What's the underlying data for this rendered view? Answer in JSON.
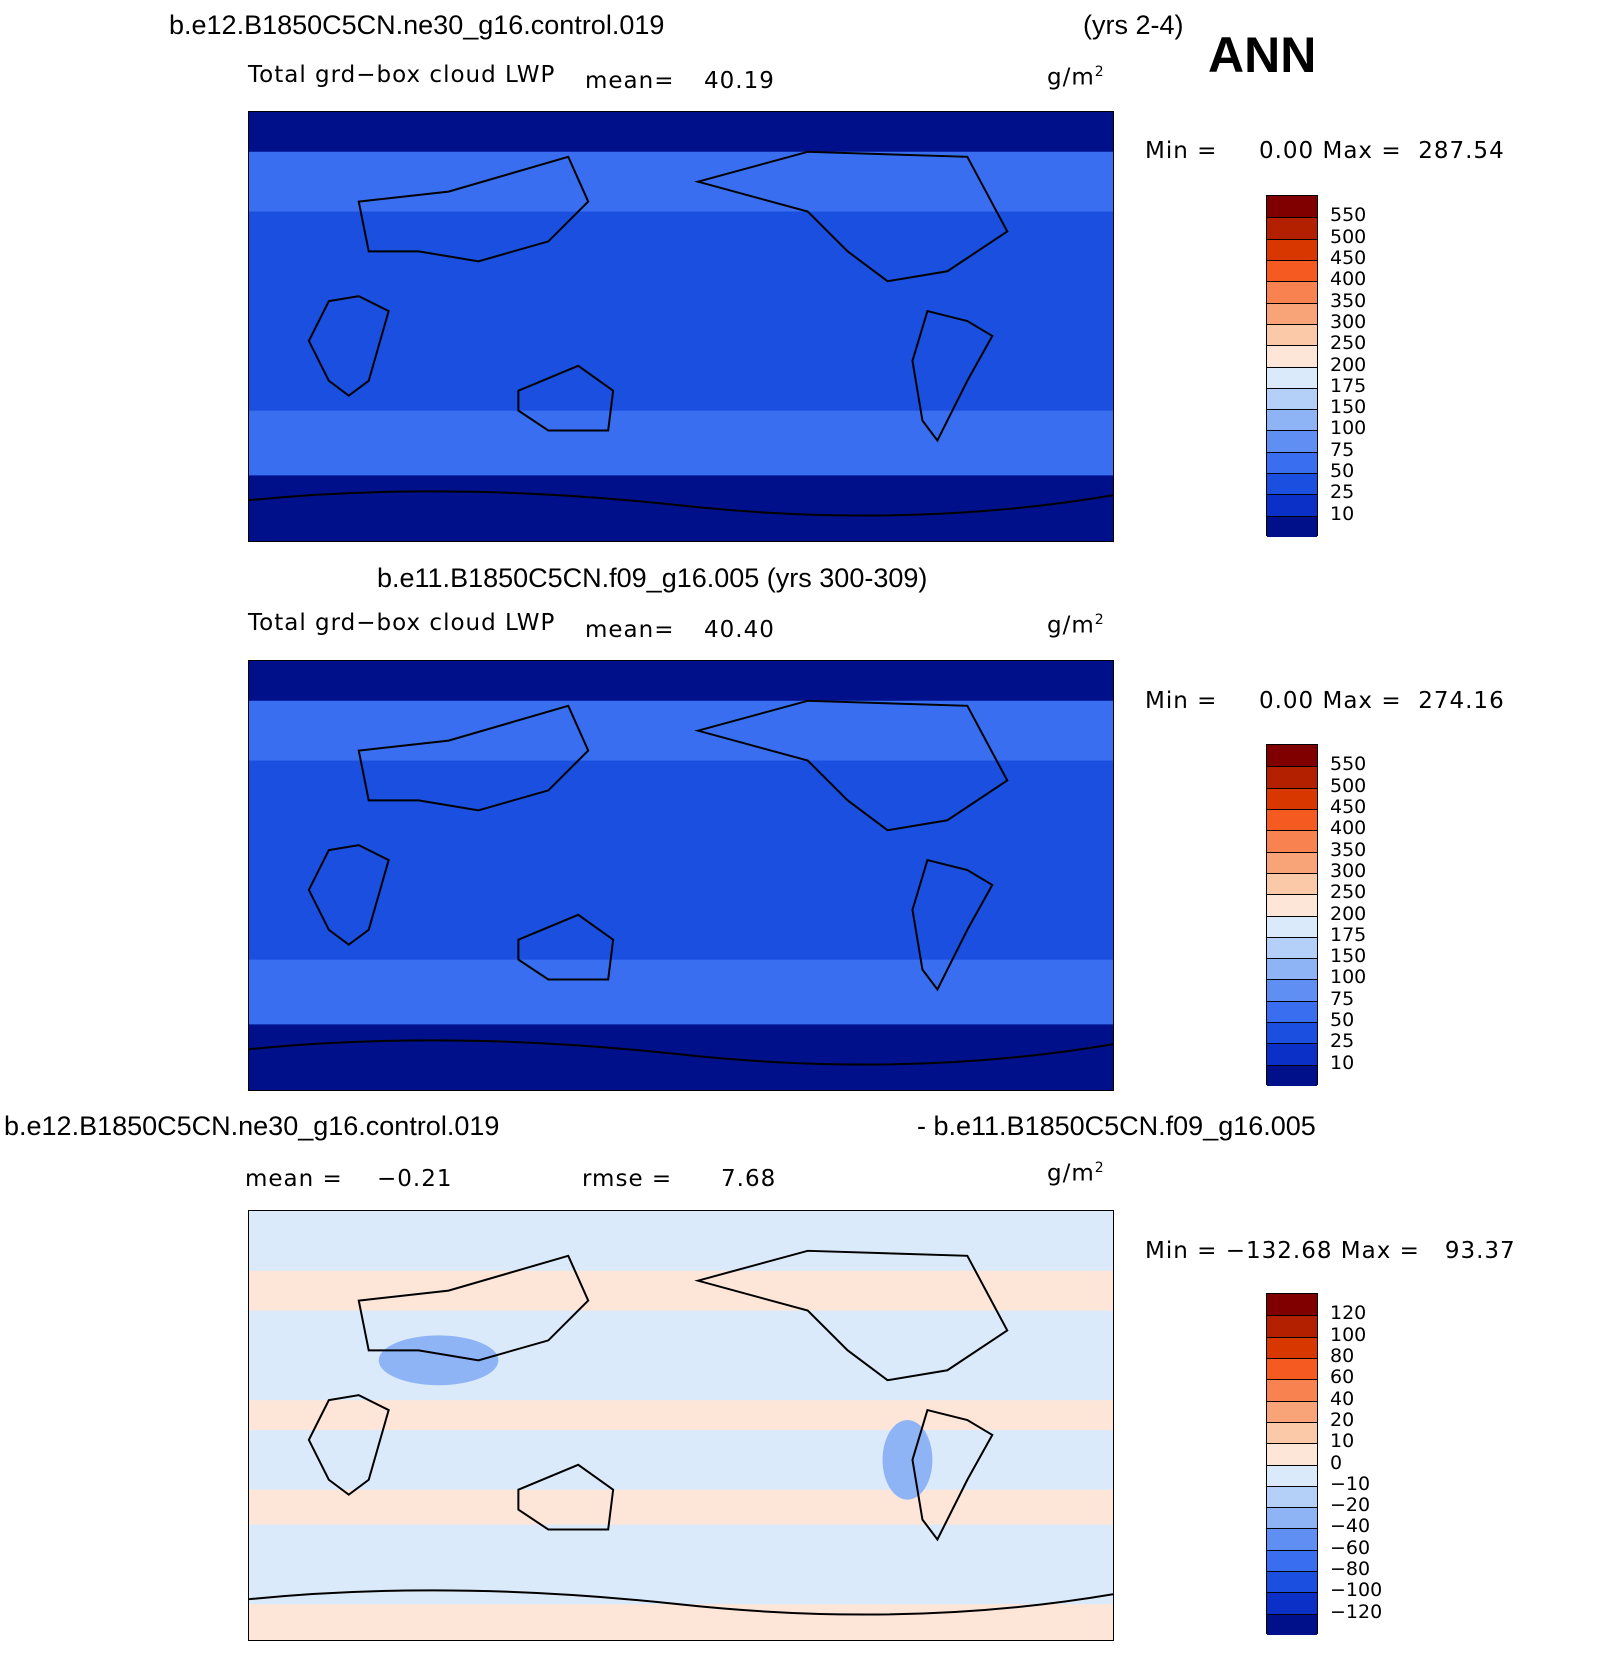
{
  "header": {
    "case1": "b.e12.B1850C5CN.ne30_g16.control.019",
    "years1": "(yrs 2-4)",
    "season": "ANN",
    "case2": "b.e11.B1850C5CN.f09_g16.005 (yrs 300-309)",
    "diff_left": "b.e12.B1850C5CN.ne30_g16.control.019",
    "diff_right": "- b.e11.B1850C5CN.f09_g16.005"
  },
  "panels": [
    {
      "variable": "Total grd−box cloud LWP",
      "mean_label": "mean=",
      "mean": "40.19",
      "units": "g/m",
      "units_sup": "2",
      "minmax": "Min =     0.00 Max =  287.54"
    },
    {
      "variable": "Total grd−box cloud LWP",
      "mean_label": "mean=",
      "mean": "40.40",
      "units": "g/m",
      "units_sup": "2",
      "minmax": "Min =     0.00 Max =  274.16"
    },
    {
      "mean_label": "mean =",
      "mean": "−0.21",
      "rmse_label": "rmse =",
      "rmse": "7.68",
      "units": "g/m",
      "units_sup": "2",
      "minmax": "Min = −132.68 Max =   93.37"
    }
  ],
  "colorbars": {
    "field": {
      "labels": [
        "550",
        "500",
        "450",
        "400",
        "350",
        "300",
        "250",
        "200",
        "175",
        "150",
        "100",
        "75",
        "50",
        "25",
        "10"
      ],
      "colors": [
        "#800000",
        "#b22000",
        "#d83800",
        "#f55a20",
        "#f88350",
        "#f9a478",
        "#fbc8a8",
        "#fde6d8",
        "#dbeafa",
        "#b4d0f8",
        "#8fb4f6",
        "#5f8ff2",
        "#3a6ef0",
        "#1a4fe0",
        "#0a30c8",
        "#00108a"
      ]
    },
    "diff": {
      "labels": [
        "120",
        "100",
        "80",
        "60",
        "40",
        "20",
        "10",
        "0",
        "−10",
        "−20",
        "−40",
        "−60",
        "−80",
        "−100",
        "−120"
      ],
      "colors": [
        "#800000",
        "#b22000",
        "#d83800",
        "#f55a20",
        "#f88350",
        "#f9a478",
        "#fbc8a8",
        "#fde6d8",
        "#dbeafa",
        "#b4d0f8",
        "#8fb4f6",
        "#5f8ff2",
        "#3a6ef0",
        "#1a4fe0",
        "#0a30c8",
        "#00108a"
      ]
    }
  },
  "fields": {
    "panel1": {
      "background": "#1a4fe0",
      "polar": "#00108a",
      "midlat": "#3a6ef0",
      "tropics": "#1a4fe0"
    },
    "panel2": {
      "background": "#1a4fe0",
      "polar": "#00108a",
      "midlat": "#3a6ef0",
      "tropics": "#1a4fe0"
    },
    "panel3": {
      "background": "#dbeafa",
      "positive": "#fde6d8",
      "negative": "#8fb4f6"
    }
  }
}
